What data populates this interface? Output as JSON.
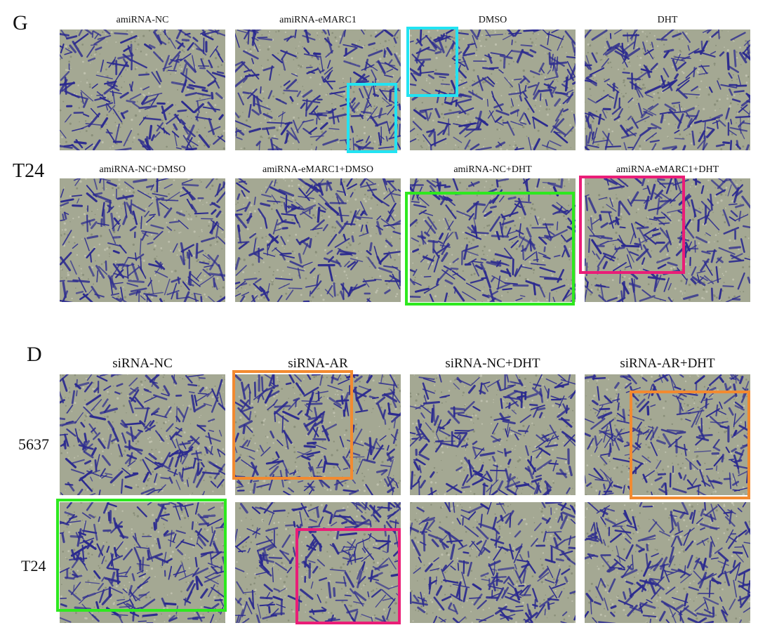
{
  "panel_g": {
    "letter": "G",
    "row_label": "T24",
    "top_labels": [
      "amiRNA-NC",
      "amiRNA-eMARC1",
      "DMSO",
      "DHT"
    ],
    "bottom_labels": [
      "amiRNA-NC+DMSO",
      "amiRNA-eMARC1+DMSO",
      "amiRNA-NC+DHT",
      "amiRNA-eMARC1+DHT"
    ]
  },
  "panel_d": {
    "letter": "D",
    "column_labels": [
      "siRNA-NC",
      "siRNA-AR",
      "siRNA-NC+DHT",
      "siRNA-AR+DHT"
    ],
    "row_labels": [
      "5637",
      "T24"
    ]
  },
  "colors": {
    "cells": "#2b2a8f",
    "background": "#9a9e8c",
    "highlight_cyan": "#22e3f2",
    "highlight_green": "#2ee81f",
    "highlight_magenta": "#ea1d77",
    "highlight_orange": "#f28a30"
  }
}
